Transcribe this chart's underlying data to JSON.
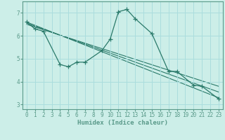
{
  "xlabel": "Humidex (Indice chaleur)",
  "bg_color": "#cceee8",
  "grid_color": "#aadddd",
  "line_color": "#2a7a6a",
  "axis_color": "#5a9a8a",
  "xlim": [
    -0.5,
    23.5
  ],
  "ylim": [
    2.8,
    7.5
  ],
  "xticks": [
    0,
    1,
    2,
    3,
    4,
    5,
    6,
    7,
    8,
    9,
    10,
    11,
    12,
    13,
    14,
    15,
    16,
    17,
    18,
    19,
    20,
    21,
    22,
    23
  ],
  "yticks": [
    3,
    4,
    5,
    6,
    7
  ],
  "main_series": {
    "x": [
      0,
      1,
      2,
      4,
      5,
      6,
      7,
      9,
      10,
      11,
      12,
      13,
      15,
      17,
      18,
      20,
      21,
      23
    ],
    "y": [
      6.6,
      6.3,
      6.2,
      4.75,
      4.65,
      4.85,
      4.85,
      5.35,
      5.85,
      7.05,
      7.15,
      6.75,
      6.1,
      4.45,
      4.45,
      3.85,
      3.8,
      3.25
    ]
  },
  "trend_lines": [
    {
      "x": [
        0,
        23
      ],
      "y": [
        6.6,
        3.3
      ]
    },
    {
      "x": [
        0,
        23
      ],
      "y": [
        6.55,
        3.55
      ]
    },
    {
      "x": [
        0,
        23
      ],
      "y": [
        6.5,
        3.8
      ]
    }
  ]
}
